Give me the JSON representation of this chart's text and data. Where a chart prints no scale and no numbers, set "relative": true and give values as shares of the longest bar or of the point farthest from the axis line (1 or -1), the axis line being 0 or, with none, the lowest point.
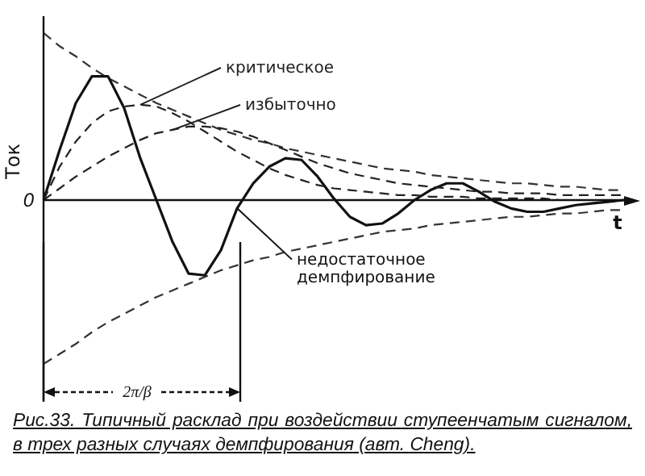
{
  "chart_data": {
    "type": "line",
    "relative": true,
    "ylabel": "Ток",
    "xlabel": "t",
    "legend": false,
    "categories": [
      null,
      null,
      null,
      null,
      null,
      null,
      null,
      null,
      null,
      null,
      null,
      null,
      null,
      null,
      null,
      null,
      null,
      null,
      null,
      null,
      null,
      null,
      null,
      null,
      null,
      null,
      null,
      null,
      null,
      null,
      null,
      null,
      null,
      null,
      null,
      null,
      null
    ],
    "series": [
      {
        "name": "критическое",
        "color": "#222222",
        "line_style": "dashed",
        "values": [
          0,
          0.2,
          0.35,
          0.46,
          0.53,
          0.56,
          0.57,
          0.56,
          0.52,
          0.47,
          0.41,
          0.35,
          0.29,
          0.24,
          0.19,
          0.15,
          0.12,
          0.09,
          0.07,
          0.06,
          0.05,
          0.04,
          0.03,
          0.03,
          0.02,
          0.02,
          0.02,
          0.01,
          0.01,
          0.01,
          0.01,
          0.01,
          0,
          0,
          0,
          0,
          0
        ]
      },
      {
        "name": "избыточно",
        "color": "#222222",
        "line_style": "dashed",
        "values": [
          0,
          0.07,
          0.14,
          0.2,
          0.26,
          0.31,
          0.36,
          0.4,
          0.42,
          0.44,
          0.44,
          0.43,
          0.41,
          0.38,
          0.34,
          0.3,
          0.26,
          0.22,
          0.19,
          0.16,
          0.14,
          0.12,
          0.1,
          0.09,
          0.08,
          0.07,
          0.06,
          0.05,
          0.05,
          0.04,
          0.04,
          0.04,
          0.03,
          0.03,
          0.03,
          0.03,
          0.03
        ]
      },
      {
        "name": "недостаточное демпфирование",
        "color": "#111111",
        "line_style": "solid",
        "values": [
          0,
          0.3,
          0.58,
          0.74,
          0.74,
          0.55,
          0.25,
          0,
          -0.25,
          -0.44,
          -0.45,
          -0.3,
          -0.05,
          0.1,
          0.2,
          0.25,
          0.24,
          0.14,
          0.01,
          -0.1,
          -0.15,
          -0.14,
          -0.08,
          0,
          0.06,
          0.1,
          0.1,
          0.05,
          -0.01,
          -0.05,
          -0.07,
          -0.07,
          -0.05,
          -0.03,
          -0.02,
          -0.01,
          0
        ]
      },
      {
        "color": "#333333",
        "line_style": "dashed",
        "values": [
          1,
          0.92,
          0.86,
          0.79,
          0.73,
          0.68,
          0.63,
          0.58,
          0.54,
          0.5,
          0.46,
          0.42,
          0.39,
          0.36,
          0.34,
          0.31,
          0.29,
          0.27,
          0.25,
          0.23,
          0.21,
          0.19,
          0.18,
          0.17,
          0.15,
          0.14,
          0.13,
          0.12,
          0.11,
          0.1,
          0.1,
          0.09,
          0.08,
          0.08,
          0.07,
          0.06,
          0.06
        ]
      },
      {
        "color": "#333333",
        "line_style": "dashed",
        "values": [
          -0.98,
          -0.92,
          -0.86,
          -0.79,
          -0.73,
          -0.68,
          -0.63,
          -0.58,
          -0.54,
          -0.5,
          -0.46,
          -0.42,
          -0.39,
          -0.36,
          -0.34,
          -0.31,
          -0.29,
          -0.27,
          -0.25,
          -0.23,
          -0.21,
          -0.19,
          -0.18,
          -0.17,
          -0.15,
          -0.14,
          -0.13,
          -0.12,
          -0.11,
          -0.1,
          -0.1,
          -0.09,
          -0.08,
          -0.08,
          -0.07,
          -0.06,
          -0.06
        ]
      }
    ],
    "annotations": [
      "0",
      "2π/β",
      "Рис.33. Типичный расклад при воздействии ступеенчатым сигналом, в трех разных случаях демпфирования (авт. Cheng)."
    ]
  }
}
